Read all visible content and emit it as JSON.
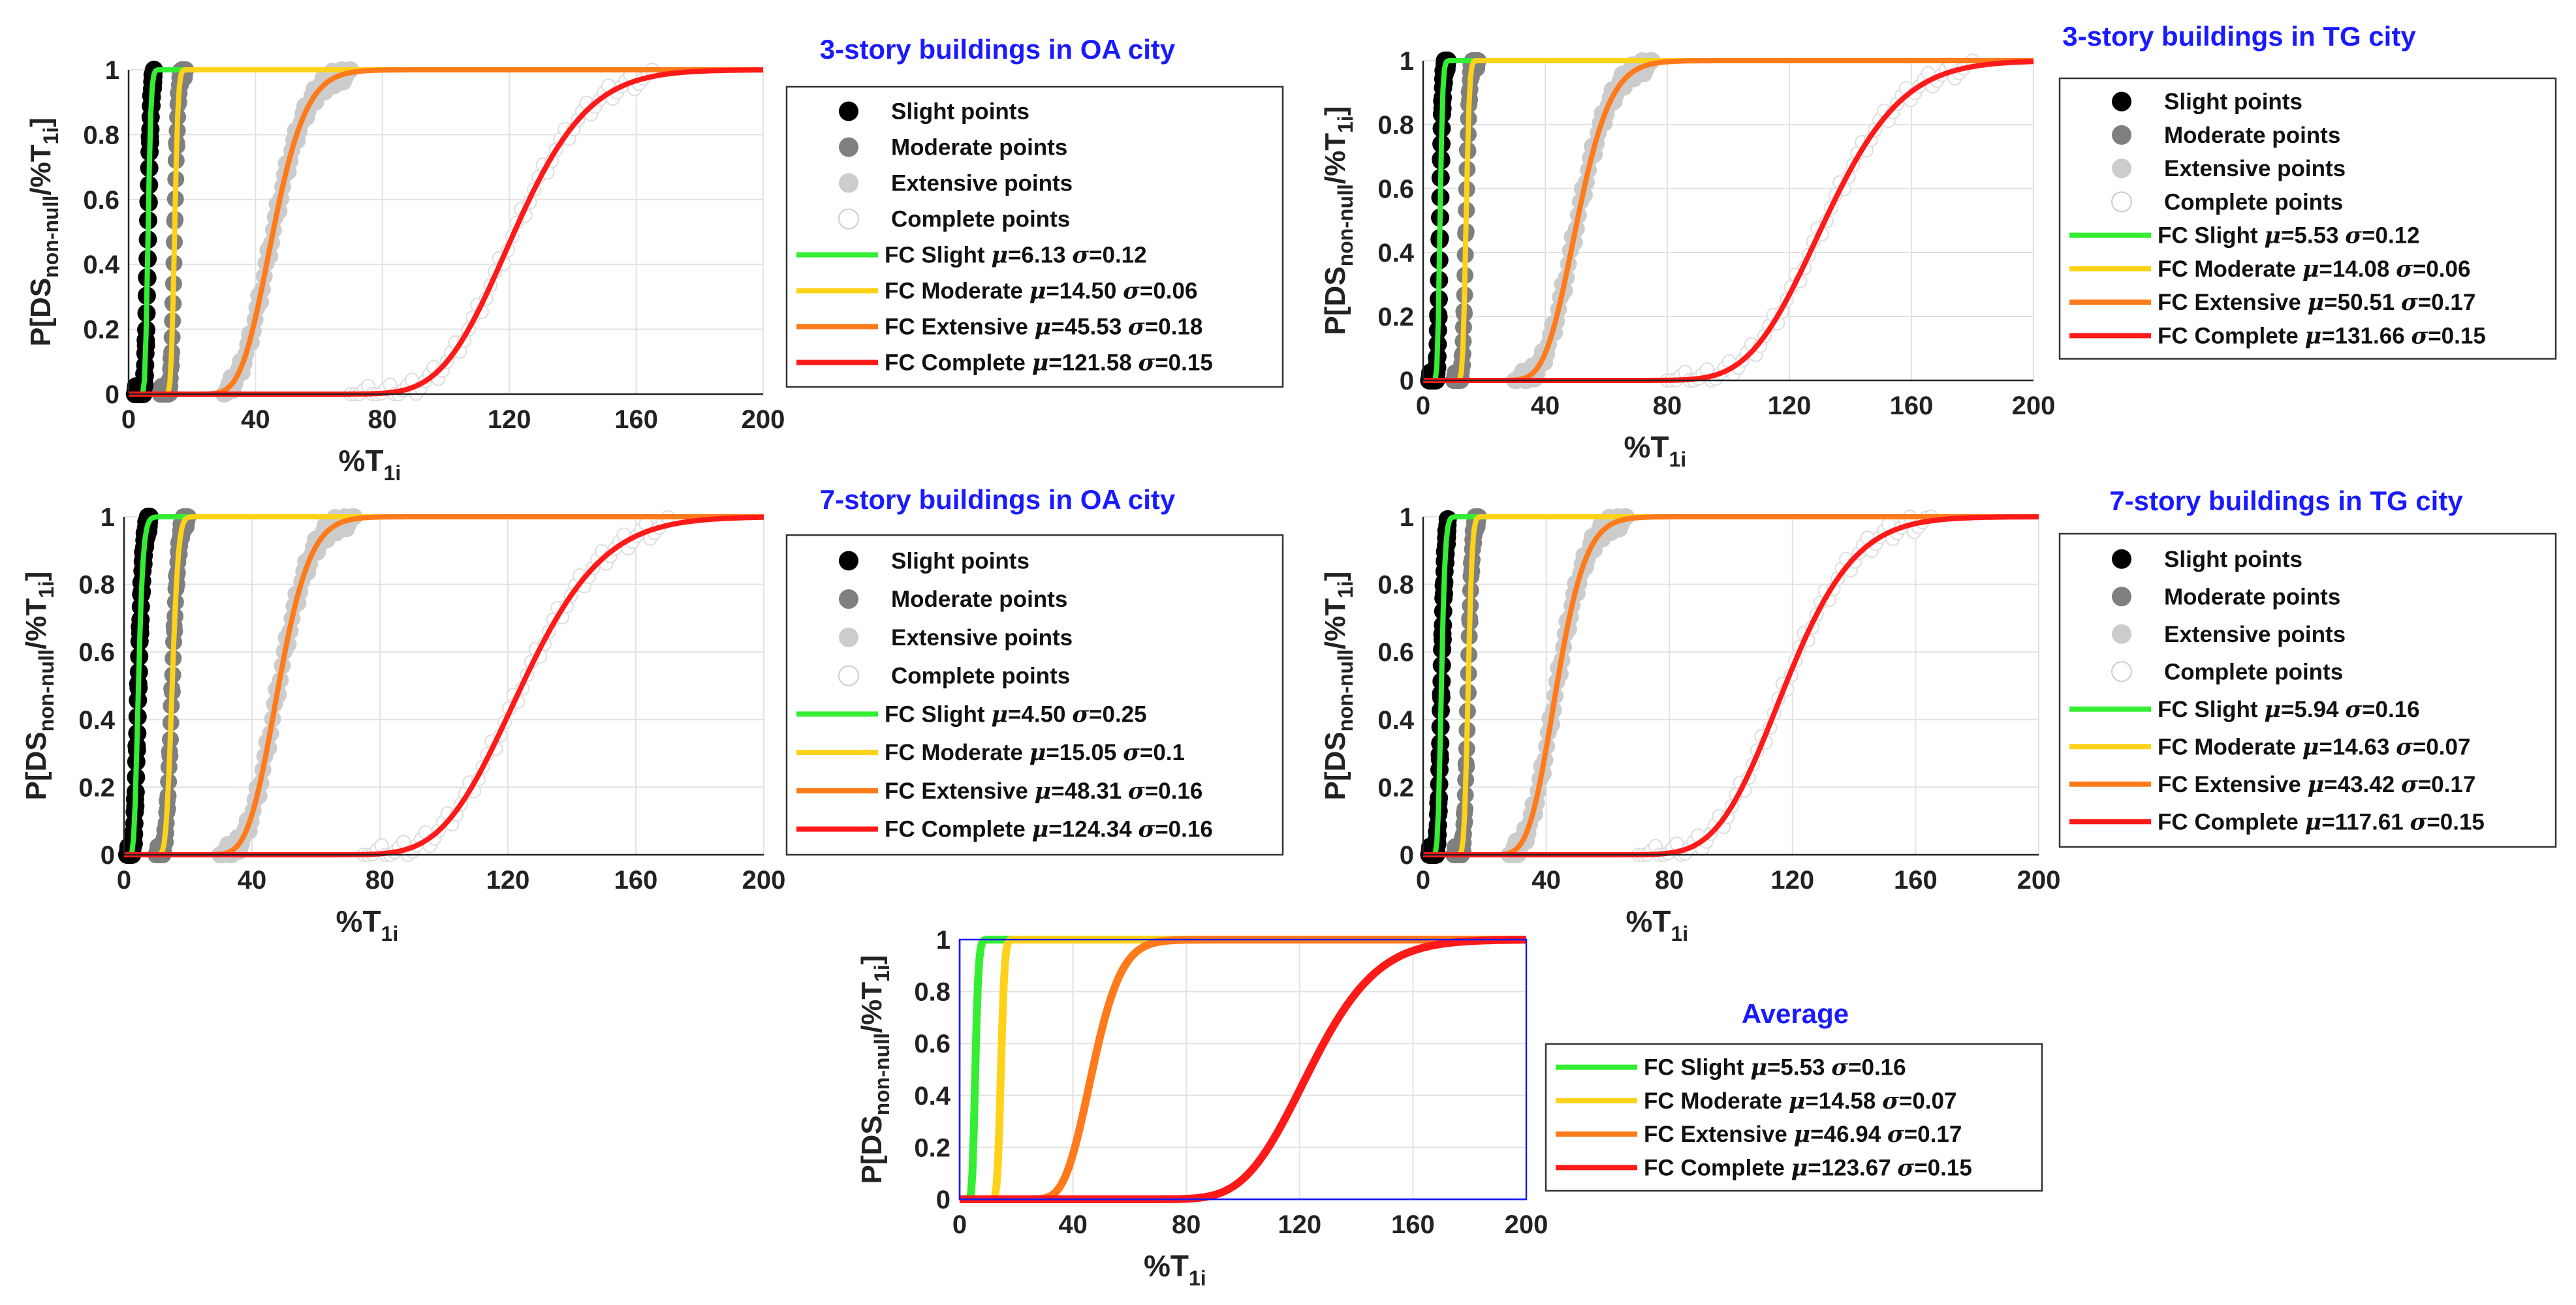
{
  "figure": {
    "description": "Fragility curves P[DS non-null / %T1i] for four building cases and their average",
    "ylabel": "P[DS",
    "ylabel_sub": "non-null",
    "ylabel_tail": "/%T",
    "ylabel_sub2": "1i",
    "ylabel_close": "]",
    "xlabel": "%T",
    "xlabel_sub": "1i"
  },
  "chart_data": [
    {
      "type": "line",
      "title": "3-story buildings in OA city",
      "xlim": [
        0,
        200
      ],
      "ylim": [
        0,
        1
      ],
      "xticks": [
        "0",
        "40",
        "80",
        "120",
        "160",
        "200"
      ],
      "yticks": [
        "0",
        "0.2",
        "0.4",
        "0.6",
        "0.8",
        "1"
      ],
      "grid": true,
      "legend_position": "right",
      "points": [
        {
          "name": "Slight points",
          "color": "#000000",
          "range": [
            2,
            8
          ]
        },
        {
          "name": "Moderate points",
          "color": "#7f7f7f",
          "range": [
            10,
            18
          ]
        },
        {
          "name": "Extensive points",
          "color": "#cccccc",
          "range": [
            30,
            70
          ]
        },
        {
          "name": "Complete points",
          "color": "#ffffff",
          "range": [
            70,
            165
          ]
        }
      ],
      "series": [
        {
          "name": "Slight",
          "label_pre": "FC Slight",
          "mu": 6.13,
          "sigma": 0.12,
          "mu_text": "6.13",
          "sigma_text": "0.12",
          "color": "#33ee33"
        },
        {
          "name": "Moderate",
          "label_pre": "FC Moderate",
          "mu": 14.5,
          "sigma": 0.06,
          "mu_text": "14.50",
          "sigma_text": "0.06",
          "color": "#ffd21a"
        },
        {
          "name": "Extensive",
          "label_pre": "FC Extensive",
          "mu": 45.53,
          "sigma": 0.18,
          "mu_text": "45.53",
          "sigma_text": "0.18",
          "color": "#ff7a1a"
        },
        {
          "name": "Complete",
          "label_pre": "FC Complete",
          "mu": 121.58,
          "sigma": 0.15,
          "mu_text": "121.58",
          "sigma_text": "0.15",
          "color": "#ff1a1a"
        }
      ]
    },
    {
      "type": "line",
      "title": "3-story buildings in TG city",
      "xlim": [
        0,
        200
      ],
      "ylim": [
        0,
        1
      ],
      "xticks": [
        "0",
        "40",
        "80",
        "120",
        "160",
        "200"
      ],
      "yticks": [
        "0",
        "0.2",
        "0.4",
        "0.6",
        "0.8",
        "1"
      ],
      "grid": true,
      "legend_position": "right",
      "points": [
        {
          "name": "Slight points",
          "color": "#000000",
          "range": [
            2,
            8
          ]
        },
        {
          "name": "Moderate points",
          "color": "#7f7f7f",
          "range": [
            10,
            18
          ]
        },
        {
          "name": "Extensive points",
          "color": "#cccccc",
          "range": [
            30,
            75
          ]
        },
        {
          "name": "Complete points",
          "color": "#ffffff",
          "range": [
            80,
            180
          ]
        }
      ],
      "series": [
        {
          "name": "Slight",
          "label_pre": "FC Slight",
          "mu": 5.53,
          "sigma": 0.12,
          "mu_text": "5.53",
          "sigma_text": "0.12",
          "color": "#33ee33"
        },
        {
          "name": "Moderate",
          "label_pre": "FC Moderate",
          "mu": 14.08,
          "sigma": 0.06,
          "mu_text": "14.08",
          "sigma_text": "0.06",
          "color": "#ffd21a"
        },
        {
          "name": "Extensive",
          "label_pre": "FC Extensive",
          "mu": 50.51,
          "sigma": 0.17,
          "mu_text": "50.51",
          "sigma_text": "0.17",
          "color": "#ff7a1a"
        },
        {
          "name": "Complete",
          "label_pre": "FC Complete",
          "mu": 131.66,
          "sigma": 0.15,
          "mu_text": "131.66",
          "sigma_text": "0.15",
          "color": "#ff1a1a"
        }
      ]
    },
    {
      "type": "line",
      "title": "7-story buildings in OA city",
      "xlim": [
        0,
        200
      ],
      "ylim": [
        0,
        1
      ],
      "xticks": [
        "0",
        "40",
        "80",
        "120",
        "160",
        "200"
      ],
      "yticks": [
        "0",
        "0.2",
        "0.4",
        "0.6",
        "0.8",
        "1"
      ],
      "grid": true,
      "legend_position": "right",
      "points": [
        {
          "name": "Slight points",
          "color": "#000000",
          "range": [
            1,
            8
          ]
        },
        {
          "name": "Moderate points",
          "color": "#7f7f7f",
          "range": [
            10,
            20
          ]
        },
        {
          "name": "Extensive points",
          "color": "#cccccc",
          "range": [
            30,
            72
          ]
        },
        {
          "name": "Complete points",
          "color": "#ffffff",
          "range": [
            75,
            170
          ]
        }
      ],
      "series": [
        {
          "name": "Slight",
          "label_pre": "FC Slight",
          "mu": 4.5,
          "sigma": 0.25,
          "mu_text": "4.50",
          "sigma_text": "0.25",
          "color": "#33ee33"
        },
        {
          "name": "Moderate",
          "label_pre": "FC Moderate",
          "mu": 15.05,
          "sigma": 0.1,
          "mu_text": "15.05",
          "sigma_text": "0.1",
          "color": "#ffd21a"
        },
        {
          "name": "Extensive",
          "label_pre": "FC Extensive",
          "mu": 48.31,
          "sigma": 0.16,
          "mu_text": "48.31",
          "sigma_text": "0.16",
          "color": "#ff7a1a"
        },
        {
          "name": "Complete",
          "label_pre": "FC Complete",
          "mu": 124.34,
          "sigma": 0.16,
          "mu_text": "124.34",
          "sigma_text": "0.16",
          "color": "#ff1a1a"
        }
      ]
    },
    {
      "type": "line",
      "title": "7-story buildings in TG city",
      "xlim": [
        0,
        200
      ],
      "ylim": [
        0,
        1
      ],
      "xticks": [
        "0",
        "40",
        "80",
        "120",
        "160",
        "200"
      ],
      "yticks": [
        "0",
        "0.2",
        "0.4",
        "0.6",
        "0.8",
        "1"
      ],
      "grid": true,
      "legend_position": "right",
      "points": [
        {
          "name": "Slight points",
          "color": "#000000",
          "range": [
            2,
            8
          ]
        },
        {
          "name": "Moderate points",
          "color": "#7f7f7f",
          "range": [
            10,
            18
          ]
        },
        {
          "name": "Extensive points",
          "color": "#cccccc",
          "range": [
            28,
            66
          ]
        },
        {
          "name": "Complete points",
          "color": "#ffffff",
          "range": [
            70,
            165
          ]
        }
      ],
      "series": [
        {
          "name": "Slight",
          "label_pre": "FC Slight",
          "mu": 5.94,
          "sigma": 0.16,
          "mu_text": "5.94",
          "sigma_text": "0.16",
          "color": "#33ee33"
        },
        {
          "name": "Moderate",
          "label_pre": "FC Moderate",
          "mu": 14.63,
          "sigma": 0.07,
          "mu_text": "14.63",
          "sigma_text": "0.07",
          "color": "#ffd21a"
        },
        {
          "name": "Extensive",
          "label_pre": "FC Extensive",
          "mu": 43.42,
          "sigma": 0.17,
          "mu_text": "43.42",
          "sigma_text": "0.17",
          "color": "#ff7a1a"
        },
        {
          "name": "Complete",
          "label_pre": "FC Complete",
          "mu": 117.61,
          "sigma": 0.15,
          "mu_text": "117.61",
          "sigma_text": "0.15",
          "color": "#ff1a1a"
        }
      ]
    },
    {
      "type": "line",
      "title": "Average",
      "xlim": [
        0,
        200
      ],
      "ylim": [
        0,
        1
      ],
      "xticks": [
        "0",
        "40",
        "80",
        "120",
        "160",
        "200"
      ],
      "yticks": [
        "0",
        "0.2",
        "0.4",
        "0.6",
        "0.8",
        "1"
      ],
      "grid": true,
      "legend_position": "right",
      "axis_color": "#1a1aff",
      "points": [],
      "series": [
        {
          "name": "Slight",
          "label_pre": "FC Slight",
          "mu": 5.53,
          "sigma": 0.16,
          "mu_text": "5.53",
          "sigma_text": "0.16",
          "color": "#33ee33"
        },
        {
          "name": "Moderate",
          "label_pre": "FC Moderate",
          "mu": 14.58,
          "sigma": 0.07,
          "mu_text": "14.58",
          "sigma_text": "0.07",
          "color": "#ffd21a"
        },
        {
          "name": "Extensive",
          "label_pre": "FC Extensive",
          "mu": 46.94,
          "sigma": 0.17,
          "mu_text": "46.94",
          "sigma_text": "0.17",
          "color": "#ff7a1a"
        },
        {
          "name": "Complete",
          "label_pre": "FC Complete",
          "mu": 123.67,
          "sigma": 0.15,
          "mu_text": "123.67",
          "sigma_text": "0.15",
          "color": "#ff1a1a"
        }
      ]
    }
  ]
}
